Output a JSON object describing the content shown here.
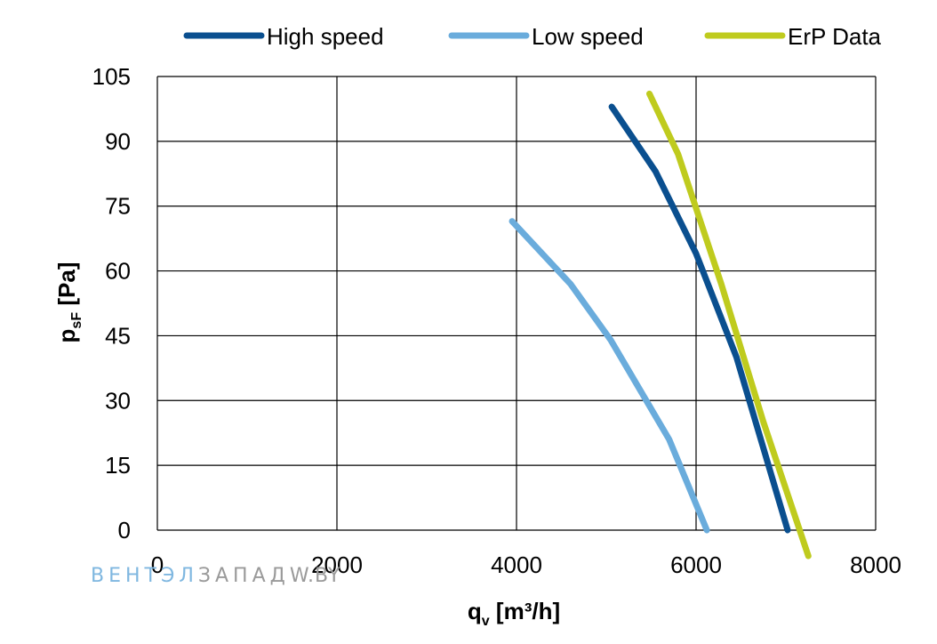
{
  "chart_data": {
    "type": "line",
    "xlim": [
      0,
      8000
    ],
    "ylim": [
      0,
      105
    ],
    "x_ticks": [
      0,
      2000,
      4000,
      6000,
      8000
    ],
    "y_ticks": [
      0,
      15,
      30,
      45,
      60,
      75,
      90,
      105
    ],
    "grid": true,
    "legend_position": "top",
    "xlabel": {
      "main": "q",
      "sub": "v",
      "rest": " [m³/h]"
    },
    "ylabel": {
      "main": "p",
      "sub": "sF",
      "rest": " [Pa]"
    },
    "series": [
      {
        "name": "High speed",
        "color": "#0a4f8f",
        "x": [
          5060,
          5550,
          6000,
          6450,
          7020
        ],
        "y": [
          98,
          83,
          64,
          40,
          0
        ]
      },
      {
        "name": "Low speed",
        "color": "#6aacdc",
        "x": [
          3950,
          4600,
          5050,
          5700,
          6120
        ],
        "y": [
          71.5,
          57,
          44,
          21,
          0
        ]
      },
      {
        "name": "ErP Data",
        "color": "#bfcb1e",
        "x": [
          5480,
          5800,
          6280,
          6750,
          7250
        ],
        "y": [
          101,
          87,
          57,
          25,
          -6
        ]
      }
    ]
  },
  "watermark": {
    "part1": "ВЕНТ",
    "part2": "ЭЛ",
    "part3": "ЗАПАД",
    "part4": "W.BY",
    "color1": "#7fb7e0",
    "color2": "#9a9a9a"
  }
}
